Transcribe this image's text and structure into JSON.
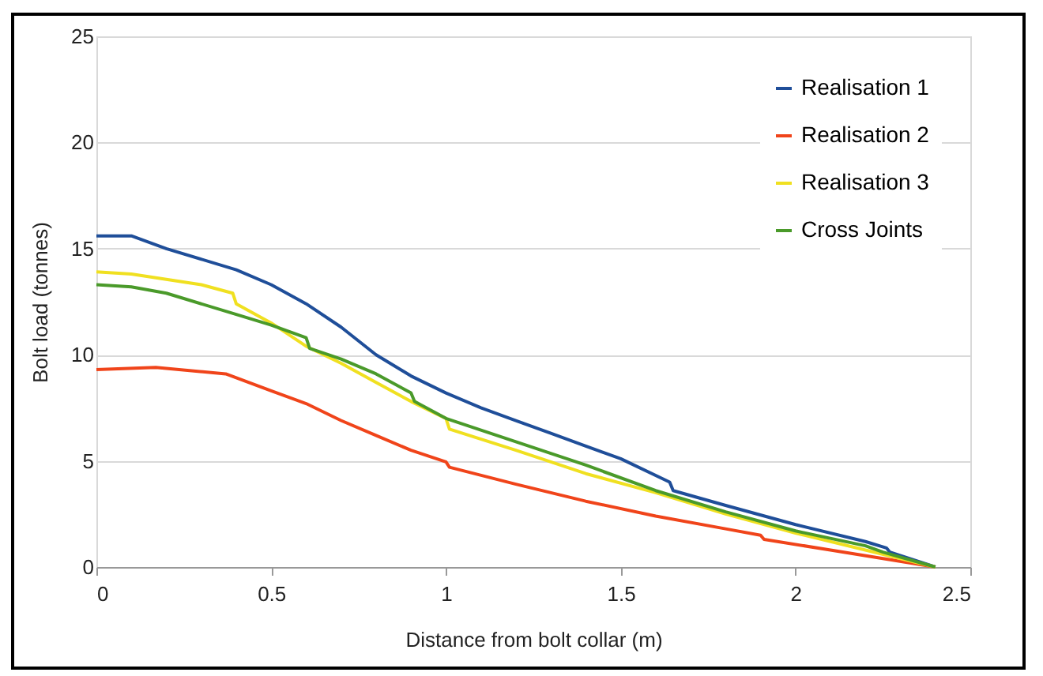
{
  "chart_data": {
    "type": "line",
    "xlabel": "Distance from bolt collar (m)",
    "ylabel": "Bolt load (tonnes)",
    "xlim": [
      0,
      2.5
    ],
    "xticks": [
      0,
      0.5,
      1,
      1.5,
      2,
      2.5
    ],
    "ylim": [
      0,
      25
    ],
    "yticks": [
      0,
      5,
      10,
      15,
      20,
      25
    ],
    "grid": "y",
    "legend": "top right",
    "series": [
      {
        "name": "Realisation 1",
        "color": "#1f4e99",
        "x": [
          0,
          0.1,
          0.2,
          0.4,
          0.5,
          0.6,
          0.7,
          0.8,
          0.9,
          1.0,
          1.1,
          1.2,
          1.3,
          1.4,
          1.5,
          1.64,
          1.65,
          1.8,
          2.0,
          2.2,
          2.26,
          2.27,
          2.4
        ],
        "values": [
          15.6,
          15.6,
          15.0,
          14.0,
          13.3,
          12.4,
          11.3,
          10.0,
          9.0,
          8.2,
          7.5,
          6.9,
          6.3,
          5.7,
          5.1,
          4.0,
          3.6,
          2.9,
          2.0,
          1.2,
          0.9,
          0.7,
          0
        ]
      },
      {
        "name": "Realisation 2",
        "color": "#f0441a",
        "x": [
          0,
          0.17,
          0.37,
          0.5,
          0.6,
          0.7,
          0.8,
          0.9,
          1.0,
          1.01,
          1.2,
          1.4,
          1.6,
          1.8,
          1.9,
          1.91,
          2.1,
          2.4
        ],
        "values": [
          9.3,
          9.4,
          9.1,
          8.3,
          7.7,
          6.9,
          6.2,
          5.5,
          4.95,
          4.7,
          3.9,
          3.1,
          2.4,
          1.8,
          1.5,
          1.3,
          0.8,
          0
        ]
      },
      {
        "name": "Realisation 3",
        "color": "#f0e020",
        "x": [
          0,
          0.1,
          0.3,
          0.39,
          0.4,
          0.5,
          0.6,
          0.7,
          0.8,
          0.9,
          1.0,
          1.01,
          1.2,
          1.4,
          1.6,
          1.8,
          2.0,
          2.2,
          2.4
        ],
        "values": [
          13.9,
          13.8,
          13.3,
          12.9,
          12.4,
          11.5,
          10.4,
          9.6,
          8.7,
          7.8,
          7.0,
          6.5,
          5.5,
          4.4,
          3.5,
          2.5,
          1.6,
          0.8,
          0
        ]
      },
      {
        "name": "Cross Joints",
        "color": "#4a9a2a",
        "x": [
          0,
          0.1,
          0.2,
          0.4,
          0.5,
          0.6,
          0.61,
          0.7,
          0.8,
          0.9,
          0.91,
          1.0,
          1.2,
          1.4,
          1.6,
          1.8,
          2.0,
          2.2,
          2.25,
          2.4
        ],
        "values": [
          13.3,
          13.2,
          12.9,
          11.9,
          11.4,
          10.8,
          10.3,
          9.8,
          9.1,
          8.2,
          7.8,
          7.0,
          5.9,
          4.8,
          3.6,
          2.6,
          1.7,
          1.0,
          0.7,
          0
        ]
      }
    ]
  }
}
